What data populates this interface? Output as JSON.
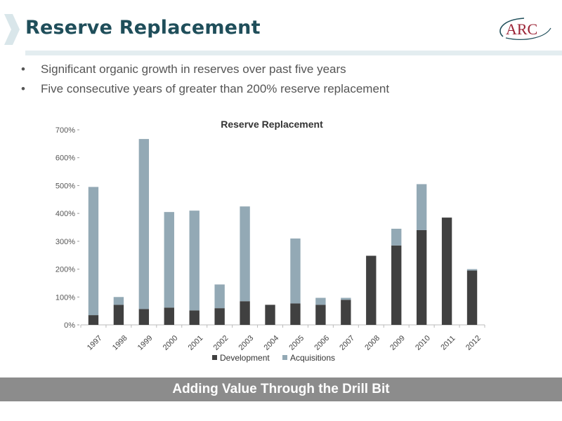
{
  "slide": {
    "title": "Reserve Replacement",
    "logo_text": "ARC",
    "bullets": [
      "Significant organic growth in reserves over past five years",
      "Five consecutive years of greater than 200% reserve replacement"
    ],
    "footer": "Adding Value Through the Drill Bit"
  },
  "colors": {
    "title": "#1f4e5a",
    "development": "#404040",
    "acquisitions": "#93a9b5",
    "footer_bar": "#8c8c8c",
    "logo": "#9b2335"
  },
  "chart_data": {
    "type": "bar",
    "stacked": true,
    "title": "Reserve Replacement",
    "categories": [
      "1997",
      "1998",
      "1999",
      "2000",
      "2001",
      "2002",
      "2003",
      "2004",
      "2005",
      "2006",
      "2007",
      "2008",
      "2009",
      "2010",
      "2011",
      "2012"
    ],
    "series": [
      {
        "name": "Development",
        "values": [
          35,
          72,
          57,
          62,
          52,
          60,
          85,
          72,
          77,
          72,
          90,
          248,
          285,
          340,
          385,
          195
        ]
      },
      {
        "name": "Acquisitions",
        "values": [
          460,
          28,
          610,
          343,
          358,
          85,
          340,
          0,
          233,
          25,
          7,
          0,
          60,
          165,
          0,
          5
        ]
      }
    ],
    "ylim": [
      0,
      700
    ],
    "yticks": [
      0,
      100,
      200,
      300,
      400,
      500,
      600,
      700
    ],
    "ytick_labels": [
      "0%",
      "100%",
      "200%",
      "300%",
      "400%",
      "500%",
      "600%",
      "700%"
    ],
    "xlabel": "",
    "ylabel": "",
    "legend": "bottom",
    "grid": false
  }
}
